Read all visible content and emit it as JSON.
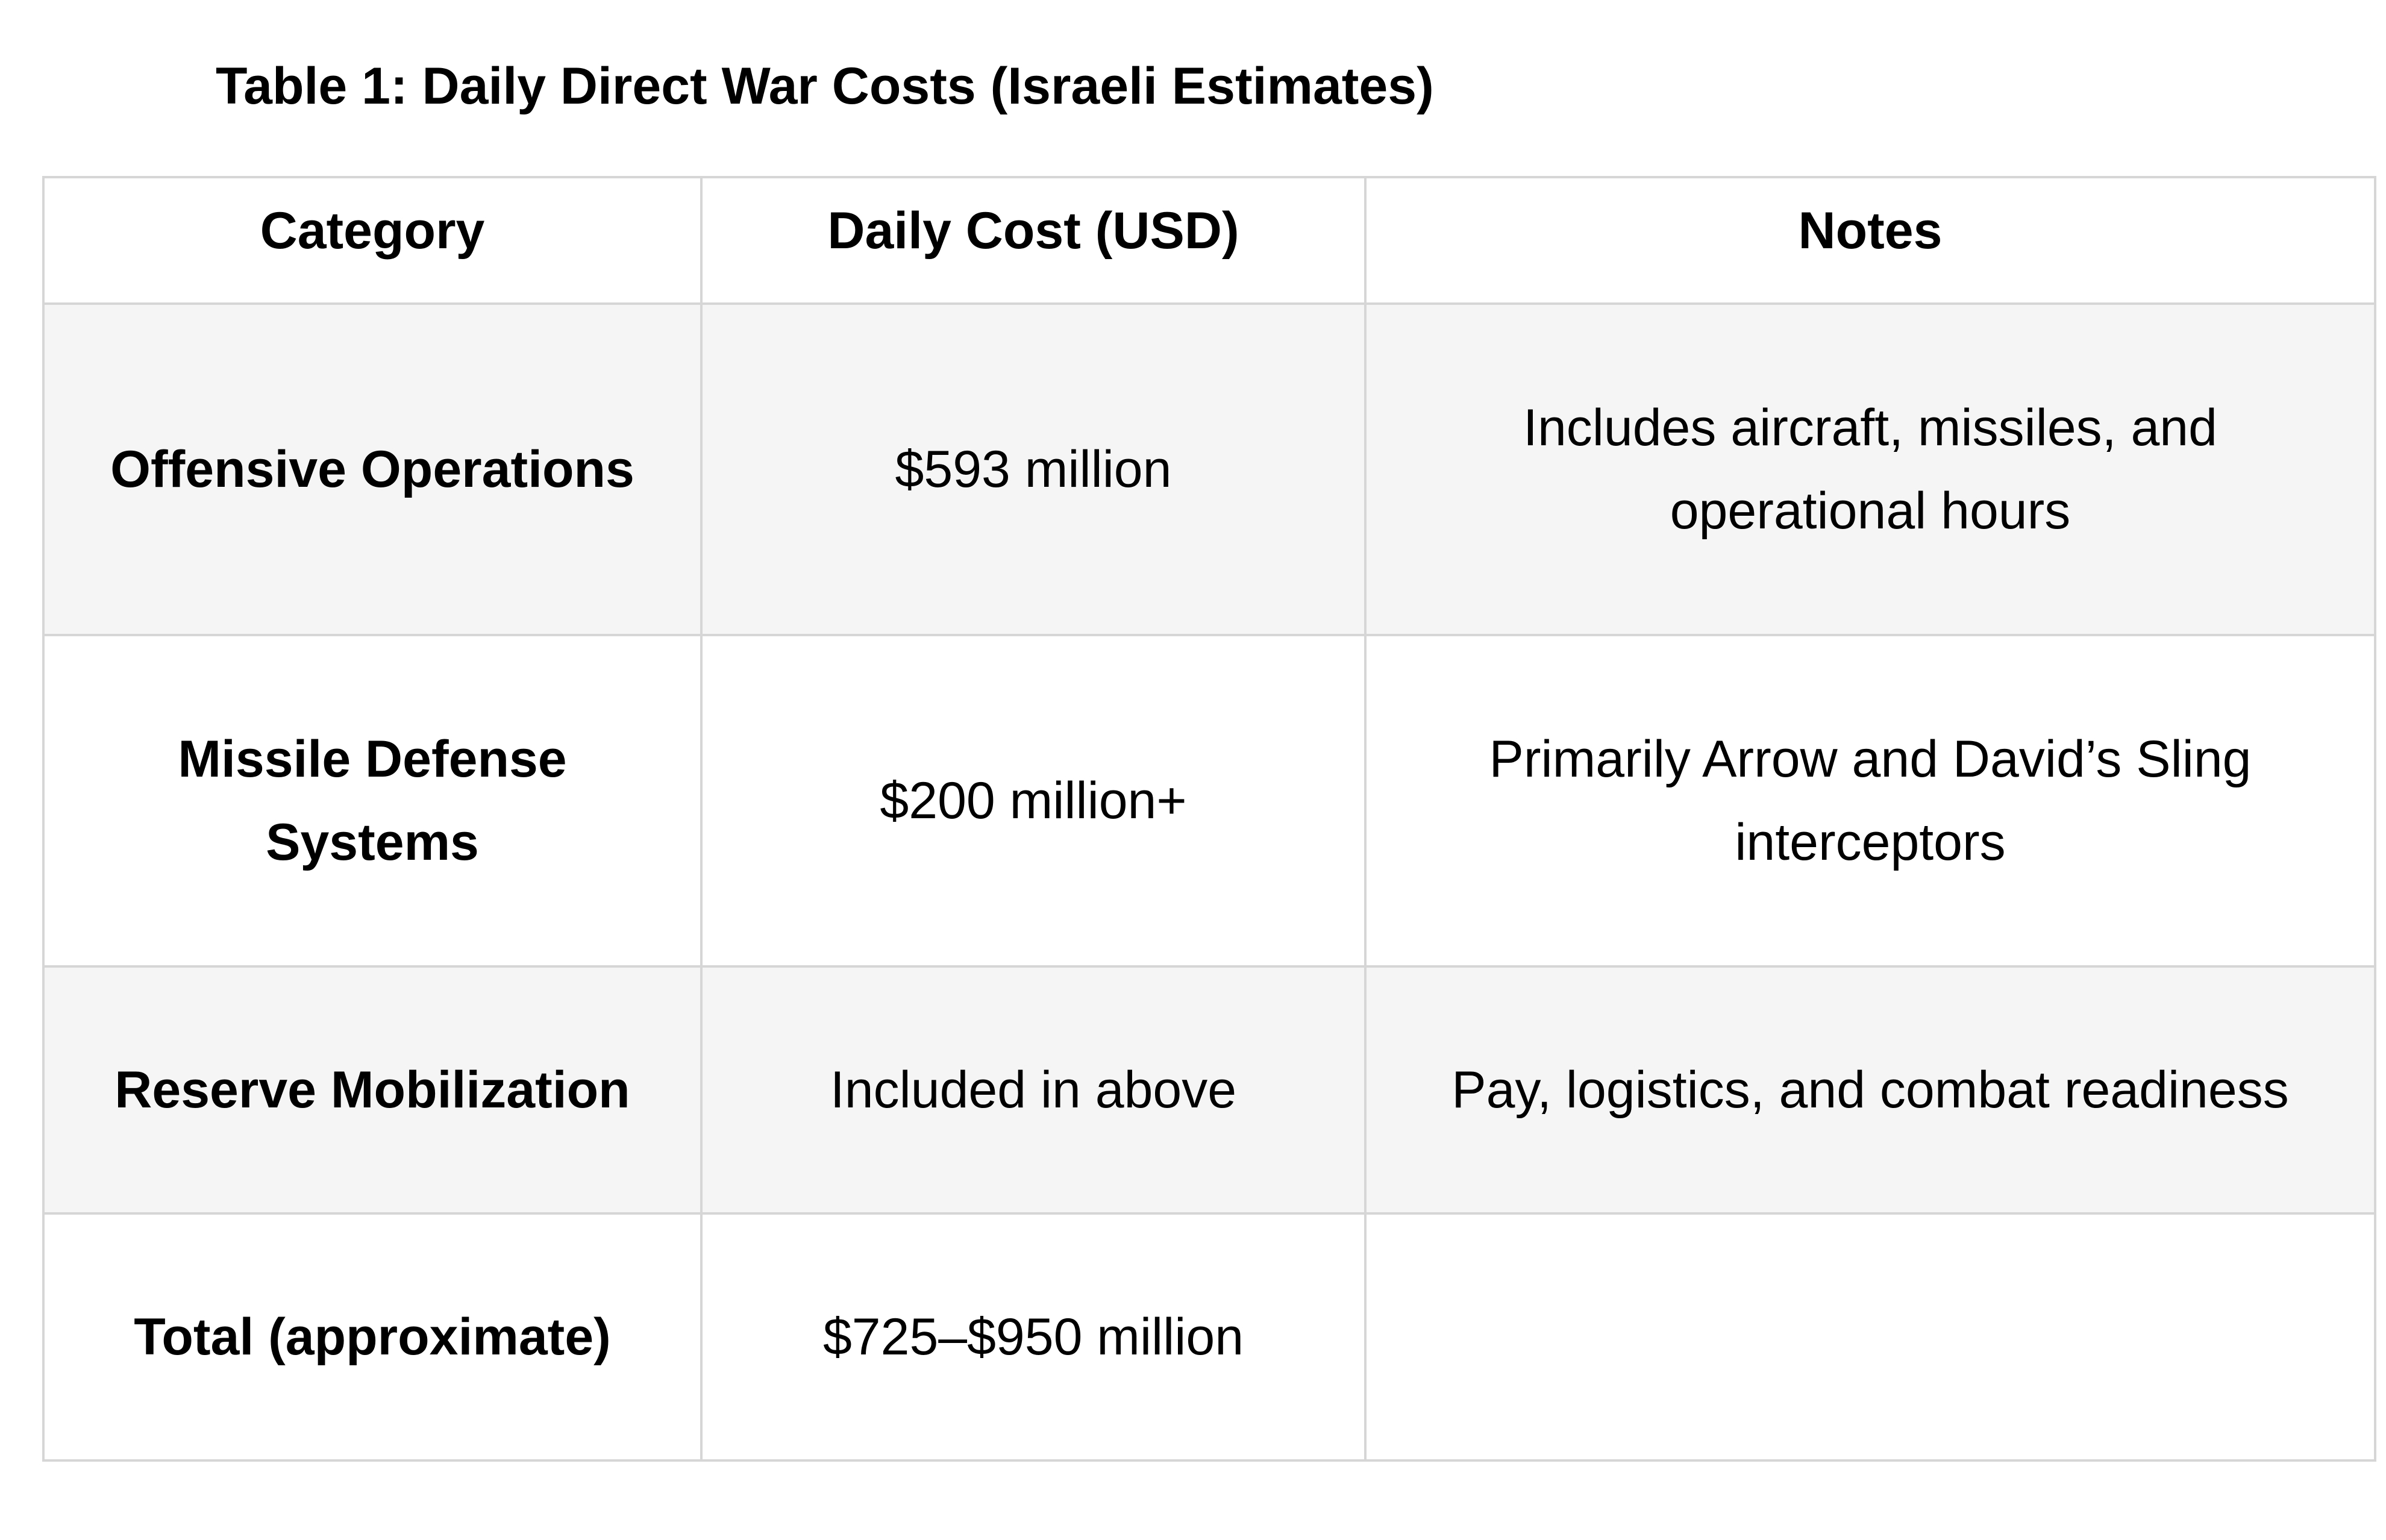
{
  "title": "Table 1: Daily Direct War Costs (Israeli Estimates)",
  "table": {
    "headers": [
      "Category",
      "Daily Cost (USD)",
      "Notes"
    ],
    "rows": [
      {
        "category": "Offensive Operations",
        "cost": "$593 million",
        "notes": "Includes aircraft, missiles, and operational hours"
      },
      {
        "category": "Missile Defense Systems",
        "cost": "$200 million+",
        "notes": "Primarily Arrow and David’s Sling interceptors"
      },
      {
        "category": "Reserve Mobilization",
        "cost": "Included in above",
        "notes": "Pay, logistics, and combat readiness"
      },
      {
        "category": "Total (approximate)",
        "cost": "$725–$950 million",
        "notes": ""
      }
    ]
  },
  "colors": {
    "shaded_row": "#f5f5f5",
    "border": "#d6d6d6"
  }
}
